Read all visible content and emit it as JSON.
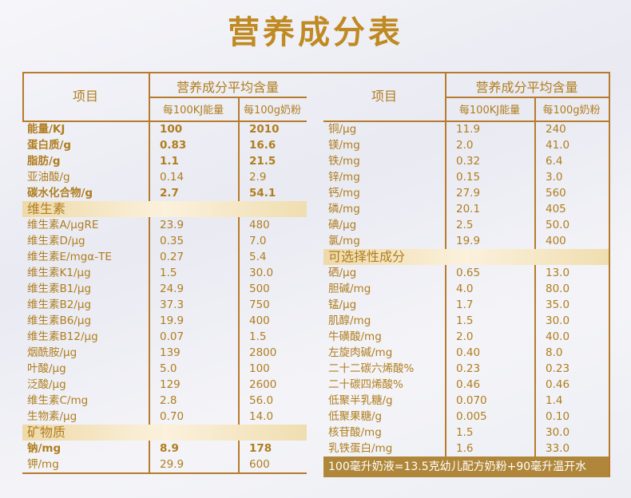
{
  "title": "营养成分表",
  "header": {
    "item": "项目",
    "avg": "营养成分平均含量",
    "per_kj": "每100KJ能量",
    "per_100g": "每100g奶粉"
  },
  "colors": {
    "text": "#b07d1e",
    "line": "#b87a2c",
    "footer_bg": "#b0873a"
  },
  "left": [
    {
      "name": "能量/KJ",
      "kj": "100",
      "g": "2010",
      "bold": true
    },
    {
      "name": "蛋白质/g",
      "kj": "0.83",
      "g": "16.6",
      "bold": true
    },
    {
      "name": "脂肪/g",
      "kj": "1.1",
      "g": "21.5",
      "bold": true
    },
    {
      "name": "亚油酸/g",
      "kj": "0.14",
      "g": "2.9"
    },
    {
      "name": "碳水化合物/g",
      "kj": "2.7",
      "g": "54.1",
      "bold": true
    },
    {
      "section": "维生素"
    },
    {
      "name": "维生素A/μgRE",
      "kj": "23.9",
      "g": "480"
    },
    {
      "name": "维生素D/μg",
      "kj": "0.35",
      "g": "7.0"
    },
    {
      "name": "维生素E/mgα-TE",
      "kj": "0.27",
      "g": "5.4"
    },
    {
      "name": "维生素K1/μg",
      "kj": "1.5",
      "g": "30.0"
    },
    {
      "name": "维生素B1/μg",
      "kj": "24.9",
      "g": "500"
    },
    {
      "name": "维生素B2/μg",
      "kj": "37.3",
      "g": "750"
    },
    {
      "name": "维生素B6/μg",
      "kj": "19.9",
      "g": "400"
    },
    {
      "name": "维生素B12/μg",
      "kj": "0.07",
      "g": "1.5"
    },
    {
      "name": "烟酰胺/μg",
      "kj": "139",
      "g": "2800"
    },
    {
      "name": "叶酸/μg",
      "kj": "5.0",
      "g": "100"
    },
    {
      "name": "泛酸/μg",
      "kj": "129",
      "g": "2600"
    },
    {
      "name": "维生素C/mg",
      "kj": "2.8",
      "g": "56.0"
    },
    {
      "name": "生物素/μg",
      "kj": "0.70",
      "g": "14.0"
    },
    {
      "section": "矿物质"
    },
    {
      "name": "钠/mg",
      "kj": "8.9",
      "g": "178",
      "bold": true
    },
    {
      "name": "钾/mg",
      "kj": "29.9",
      "g": "600"
    }
  ],
  "right": [
    {
      "name": "铜/μg",
      "kj": "11.9",
      "g": "240"
    },
    {
      "name": "镁/mg",
      "kj": "2.0",
      "g": "41.0"
    },
    {
      "name": "铁/mg",
      "kj": "0.32",
      "g": "6.4"
    },
    {
      "name": "锌/mg",
      "kj": "0.15",
      "g": "3.0"
    },
    {
      "name": "钙/mg",
      "kj": "27.9",
      "g": "560"
    },
    {
      "name": "磷/mg",
      "kj": "20.1",
      "g": "405"
    },
    {
      "name": "碘/μg",
      "kj": "2.5",
      "g": "50.0"
    },
    {
      "name": "氯/mg",
      "kj": "19.9",
      "g": "400"
    },
    {
      "section": "可选择性成分"
    },
    {
      "name": "硒/μg",
      "kj": "0.65",
      "g": "13.0"
    },
    {
      "name": "胆碱/mg",
      "kj": "4.0",
      "g": "80.0"
    },
    {
      "name": "锰/μg",
      "kj": "1.7",
      "g": "35.0"
    },
    {
      "name": "肌醇/mg",
      "kj": "1.5",
      "g": "30.0"
    },
    {
      "name": "牛磺酸/mg",
      "kj": "2.0",
      "g": "40.0"
    },
    {
      "name": "左旋肉碱/mg",
      "kj": "0.40",
      "g": "8.0"
    },
    {
      "name": "二十二碳六烯酸%",
      "kj": "0.23",
      "g": "0.23"
    },
    {
      "name": "二十碳四烯酸%",
      "kj": "0.46",
      "g": "0.46"
    },
    {
      "name": "低聚半乳糖/g",
      "kj": "0.070",
      "g": "1.4"
    },
    {
      "name": "低聚果糖/g",
      "kj": "0.005",
      "g": "0.10"
    },
    {
      "name": "核苷酸/mg",
      "kj": "1.5",
      "g": "30.0"
    },
    {
      "name": "乳铁蛋白/mg",
      "kj": "1.6",
      "g": "33.0"
    }
  ],
  "footer": "100毫升奶液=13.5克幼儿配方奶粉+90毫升温开水"
}
